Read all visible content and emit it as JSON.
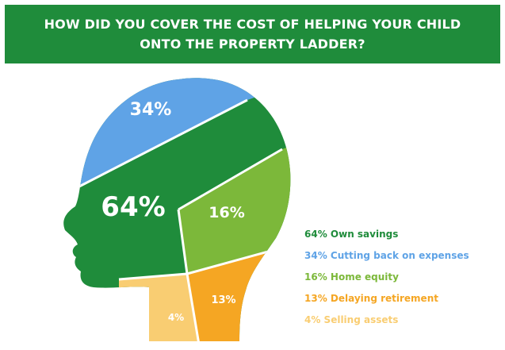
{
  "title": "HOW DID YOU COVER THE COST OF HELPING YOUR CHILD ONTO THE PROPERTY LADDER?",
  "colors": {
    "banner": "#1f8c3b",
    "own_savings": "#1f8c3b",
    "cutting_back": "#5fa3e6",
    "home_equity": "#7cb83a",
    "delaying_retirement": "#f5a623",
    "selling_assets": "#f9cd72"
  },
  "chart_data": {
    "type": "pie",
    "categories": [
      "Own savings",
      "Cutting back on expenses",
      "Home equity",
      "Delaying retirement",
      "Selling assets"
    ],
    "values": [
      64,
      34,
      16,
      13,
      4
    ],
    "unit": "%",
    "data_labels": [
      "64%",
      "34%",
      "16%",
      "13%",
      "4%"
    ],
    "legend": [
      "64% Own savings",
      "34% Cutting back on expenses",
      "16%  Home equity",
      "13% Delaying retirement",
      "4% Selling assets"
    ],
    "legend_position": "right",
    "shape": "head silhouette"
  }
}
